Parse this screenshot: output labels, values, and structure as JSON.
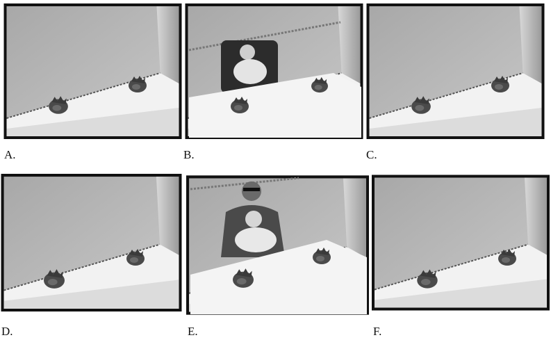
{
  "panels": [
    {
      "label": "A."
    },
    {
      "label": "B."
    },
    {
      "label": "C."
    },
    {
      "label": "D."
    },
    {
      "label": "E."
    },
    {
      "label": "F."
    }
  ]
}
